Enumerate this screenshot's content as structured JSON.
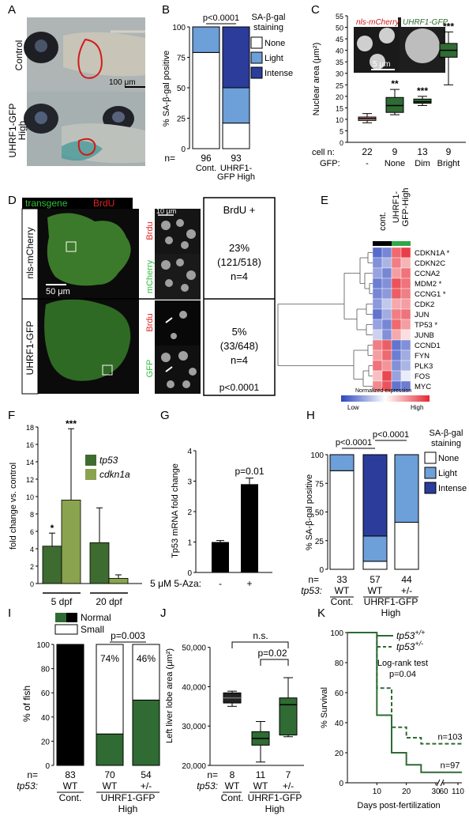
{
  "panel_letters": [
    "A",
    "B",
    "C",
    "D",
    "E",
    "F",
    "G",
    "H",
    "I",
    "J",
    "K"
  ],
  "colors": {
    "dark_blue": "#2b3c9a",
    "light_blue": "#6d9fd8",
    "dark_green": "#2f6b33",
    "light_green": "#8ba95a",
    "zebrafish_red_outline": "#d11a1a"
  },
  "A": {
    "rows": [
      {
        "label": "Control"
      },
      {
        "label": "UHRF1-GFP\nHigh"
      }
    ],
    "scale_bar": "100 μm"
  },
  "chart_data": [
    {
      "panel": "B",
      "type": "bar",
      "stacked": true,
      "categories": [
        "Cont.",
        "UHRF1-\nGFP High"
      ],
      "n": [
        "96",
        "93"
      ],
      "n_label": "n=",
      "ylabel": "% SA-β-gal positive",
      "ylim": [
        0,
        100
      ],
      "yticks": [
        "0",
        "25",
        "50",
        "75",
        "100"
      ],
      "pvalue": "p<0.0001",
      "legend_title": "SA-β-gal\nstaining",
      "series": [
        {
          "name": "None",
          "color": "#ffffff",
          "values": [
            79,
            21
          ]
        },
        {
          "name": "Light",
          "color": "#6d9fd8",
          "values": [
            21,
            29
          ]
        },
        {
          "name": "Intense",
          "color": "#2b3c9a",
          "values": [
            0,
            50
          ]
        }
      ]
    },
    {
      "panel": "C",
      "type": "box",
      "ylabel": "Nuclear area (μm²)",
      "ylim": [
        0,
        55
      ],
      "yticks": [
        "0",
        "5",
        "10",
        "15",
        "20",
        "25",
        "30",
        "35",
        "40",
        "45",
        "50",
        "55"
      ],
      "inset_labels": [
        "nls-mCherry",
        "UHRF1-GFP"
      ],
      "inset_scale": "5 μm",
      "cell_n_label": "cell n:",
      "gfp_label": "GFP:",
      "groups": [
        {
          "n": "22",
          "gfp": "-",
          "min": 8.5,
          "q1": 9.5,
          "median": 10.3,
          "q3": 11,
          "max": 12.5,
          "sig": "",
          "color": "#d99a9a"
        },
        {
          "n": "9",
          "gfp": "None",
          "min": 12,
          "q1": 13,
          "median": 16,
          "q3": 19.5,
          "max": 23,
          "sig": "**",
          "color": "#2f6b33"
        },
        {
          "n": "13",
          "gfp": "Dim",
          "min": 16,
          "q1": 17,
          "median": 17.6,
          "q3": 18.8,
          "max": 20,
          "sig": "***",
          "color": "#2f6b33"
        },
        {
          "n": "9",
          "gfp": "Bright",
          "min": 25,
          "q1": 37,
          "median": 40,
          "q3": 43,
          "max": 48,
          "sig": "***",
          "color": "#2f6b33"
        }
      ]
    },
    {
      "panel": "E",
      "type": "heatmap",
      "col_groups": [
        "cont.",
        "UHRF1-\nGFP-High"
      ],
      "rows": [
        "CDKN1A",
        "CDKN2C",
        "CCNA2",
        "MDM2",
        "CCNG1",
        "CDK2",
        "JUN",
        "TP53",
        "JUNB",
        "CCND1",
        "FYN",
        "PLK3",
        "FOS",
        "MYC"
      ],
      "row_marks": [
        "*",
        "",
        "",
        "*",
        "*",
        "",
        "",
        "*",
        "",
        "",
        "",
        "",
        "",
        ""
      ],
      "values": [
        [
          -1.6,
          -1.3,
          1.4,
          1.8
        ],
        [
          -1.2,
          -0.8,
          1.2,
          0.7
        ],
        [
          -1.0,
          -1.3,
          0.9,
          1.3
        ],
        [
          -1.4,
          -1.2,
          1.6,
          1.3
        ],
        [
          -1.3,
          -1.1,
          1.5,
          1.2
        ],
        [
          -1.1,
          -0.6,
          0.8,
          0.9
        ],
        [
          -1.5,
          -0.9,
          1.2,
          1.3
        ],
        [
          -1.0,
          -1.3,
          1.4,
          0.9
        ],
        [
          -0.5,
          -1.2,
          0.8,
          0.3
        ],
        [
          1.2,
          1.5,
          -1.5,
          -1.2
        ],
        [
          0.9,
          1.4,
          -1.4,
          -0.9
        ],
        [
          1.3,
          1.0,
          -1.2,
          -0.8
        ],
        [
          0.6,
          1.7,
          -1.0,
          -0.2
        ],
        [
          1.1,
          1.6,
          -1.5,
          -1.4
        ]
      ],
      "legend_title": "Normalized expression",
      "legend_low": "Low",
      "legend_high": "High"
    },
    {
      "panel": "F",
      "type": "bar",
      "categories": [
        "5 dpf",
        "20 dpf"
      ],
      "ylabel": "fold change vs. control",
      "ylim": [
        0,
        18
      ],
      "yticks": [
        "0",
        "2",
        "4",
        "6",
        "8",
        "10",
        "12",
        "14",
        "16",
        "18"
      ],
      "series": [
        {
          "name": "tp53",
          "color": "#3e6b2f",
          "values": [
            4.3,
            4.7
          ],
          "err": [
            1.5,
            4.0
          ],
          "sig": [
            "*",
            ""
          ]
        },
        {
          "name": "cdkn1a",
          "color": "#8aa34e",
          "values": [
            9.6,
            0.6
          ],
          "err": [
            8.2,
            0.4
          ],
          "sig": [
            "***",
            ""
          ]
        }
      ]
    },
    {
      "panel": "G",
      "type": "bar",
      "categories": [
        "-",
        "+"
      ],
      "xlabel": "5 μM 5-Aza:",
      "ylabel": "Tp53 mRNA fold change",
      "ylim": [
        0,
        4
      ],
      "yticks": [
        "0",
        "1",
        "2",
        "3",
        "4"
      ],
      "values": [
        1.0,
        2.9
      ],
      "err": [
        0.05,
        0.2
      ],
      "pvalue": "p=0.01"
    },
    {
      "panel": "H",
      "type": "bar",
      "stacked": true,
      "categories": [
        "WT",
        "WT",
        "+/-"
      ],
      "n": [
        "33",
        "57",
        "44"
      ],
      "n_label": "n=",
      "genotype_label": "tp53:",
      "group_labels": [
        "Cont.",
        "UHRF1-GFP\nHigh"
      ],
      "ylabel": "% SA-β-gal positive",
      "ylim": [
        0,
        100
      ],
      "yticks": [
        "0",
        "25",
        "50",
        "75",
        "100"
      ],
      "pvalues": [
        "p<0.0001",
        "p<0.0001"
      ],
      "legend_title": "SA-β-gal\nstaining",
      "series": [
        {
          "name": "None",
          "color": "#ffffff",
          "values": [
            86,
            7,
            41
          ]
        },
        {
          "name": "Light",
          "color": "#6d9fd8",
          "values": [
            14,
            22,
            59
          ]
        },
        {
          "name": "Intense",
          "color": "#2b3c9a",
          "values": [
            0,
            71,
            0
          ]
        }
      ]
    },
    {
      "panel": "I",
      "type": "bar",
      "stacked": true,
      "categories": [
        "WT",
        "WT",
        "+/-"
      ],
      "n": [
        "83",
        "70",
        "54"
      ],
      "n_label": "n=",
      "genotype_label": "tp53:",
      "group_labels": [
        "Cont.",
        "UHRF1-GFP\nHigh"
      ],
      "ylabel": "% of fish",
      "ylim": [
        0,
        100
      ],
      "yticks": [
        "0",
        "20",
        "40",
        "60",
        "80",
        "100"
      ],
      "pvalue": "p=0.003",
      "series": [
        {
          "name": "Normal",
          "color": "#2f6b33",
          "values": [
            100,
            26,
            54
          ]
        },
        {
          "name": "Small",
          "color": "#ffffff",
          "values": [
            0,
            74,
            46
          ],
          "labels": [
            "",
            "74%",
            "46%"
          ]
        }
      ],
      "normal_legend_black": "#000000"
    },
    {
      "panel": "J",
      "type": "box",
      "ylabel": "Left liver lobe area (μm²)",
      "ylim": [
        20000,
        55000
      ],
      "yticks": [
        "20,000",
        "30,000",
        "40,000",
        "50,000"
      ],
      "ytick_values": [
        20000,
        30000,
        40000,
        50000
      ],
      "n_label": "n=",
      "genotype_label": "tp53:",
      "group_labels": [
        "Cont.",
        "UHRF1-GFP\nHigh"
      ],
      "annotations": [
        "n.s.",
        "p=0.02"
      ],
      "groups": [
        {
          "n": "8",
          "genotype": "WT",
          "min": 37500,
          "q1": 38500,
          "median": 40000,
          "q3": 41500,
          "max": 42000,
          "color": "#222222"
        },
        {
          "n": "11",
          "genotype": "WT",
          "min": 21000,
          "q1": 26000,
          "median": 28000,
          "q3": 30000,
          "max": 33000,
          "color": "#2f6b33"
        },
        {
          "n": "7",
          "genotype": "+/-",
          "min": 28500,
          "q1": 29000,
          "median": 38000,
          "q3": 40000,
          "max": 46000,
          "color": "#2f6b33"
        }
      ]
    },
    {
      "panel": "K",
      "type": "line",
      "step": true,
      "xlabel": "Days post-fertilization",
      "ylabel": "% Survival",
      "xticks": [
        "10",
        "20",
        "30",
        "60",
        "110"
      ],
      "ylim": [
        0,
        100
      ],
      "yticks": [
        "0",
        "20",
        "40",
        "60",
        "80",
        "100"
      ],
      "test_label": "Log-rank test\np=0.04",
      "series": [
        {
          "name": "tp53+/+",
          "style": "solid",
          "color": "#2f6b33",
          "n": "n=97",
          "x": [
            0,
            10,
            15,
            20,
            25,
            110
          ],
          "y": [
            100,
            45,
            20,
            12,
            7,
            7
          ]
        },
        {
          "name": "tp53+/-",
          "style": "dashed",
          "color": "#2f6b33",
          "n": "n=103",
          "x": [
            0,
            10,
            15,
            20,
            25,
            110
          ],
          "y": [
            100,
            63,
            37,
            30,
            26,
            26
          ]
        }
      ]
    }
  ],
  "D": {
    "header": [
      "transgene",
      "BrdU"
    ],
    "rows": [
      {
        "label": "nls-mCherry",
        "scale": "50 μm",
        "channels": [
          "Brdu",
          "mCherry"
        ],
        "pct": "23%",
        "count": "(121/518)",
        "n": "n=4"
      },
      {
        "label": "UHRF1-GFP",
        "channels": [
          "Brdu",
          "GFP"
        ],
        "pct": "5%",
        "count": "(33/648)",
        "n": "n=4"
      }
    ],
    "brdu_title": "BrdU +",
    "inset_scale": "10 μm",
    "pvalue": "p<0.0001"
  }
}
